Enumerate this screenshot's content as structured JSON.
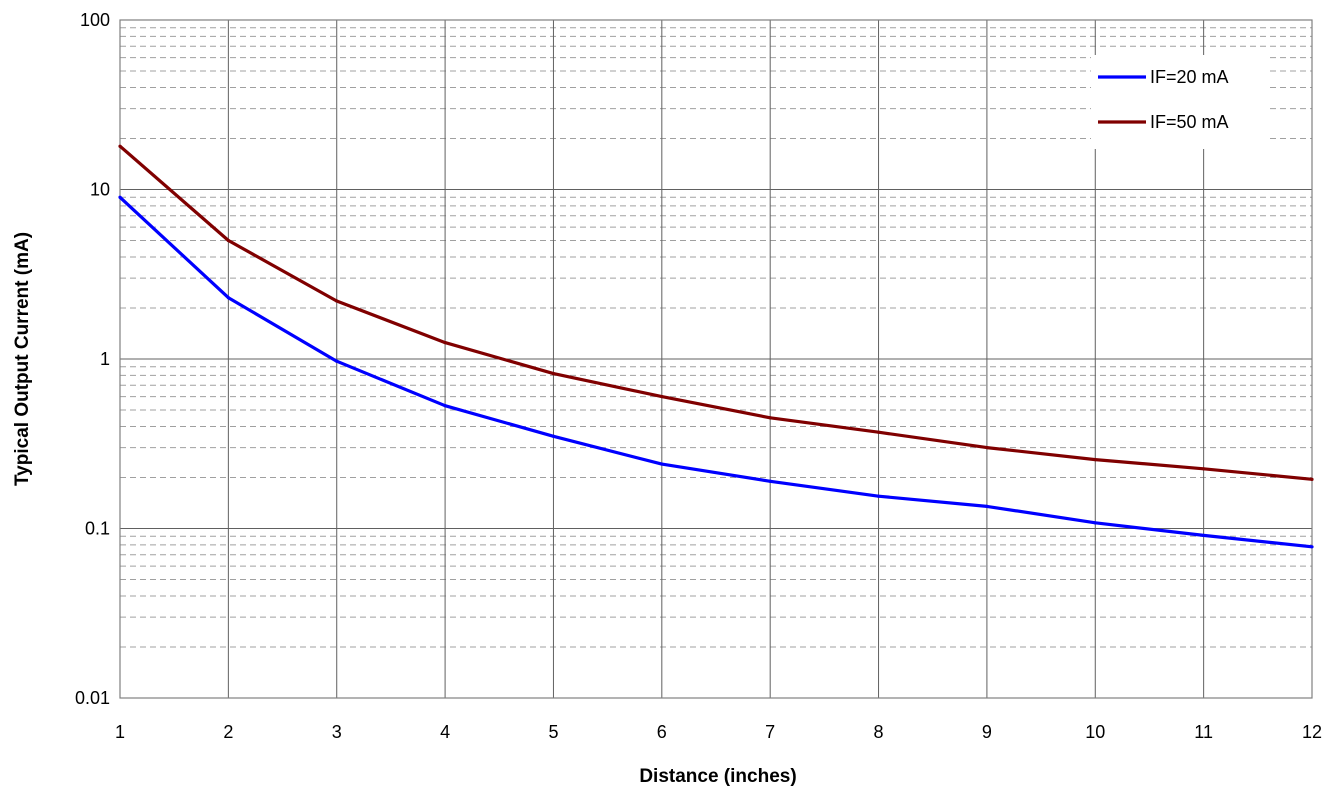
{
  "chart_data": {
    "type": "line",
    "title": "",
    "xlabel": "Distance (inches)",
    "ylabel": "Typical Output Current (mA)",
    "x": [
      1,
      2,
      3,
      4,
      5,
      6,
      7,
      8,
      9,
      10,
      11,
      12
    ],
    "x_tick_labels": [
      "1",
      "2",
      "3",
      "4",
      "5",
      "6",
      "7",
      "8",
      "9",
      "10",
      "11",
      "12"
    ],
    "xlim": [
      1,
      12
    ],
    "yscale": "log",
    "ylim": [
      0.01,
      100
    ],
    "y_tick_labels": [
      "0.01",
      "0.1",
      "1",
      "10",
      "100"
    ],
    "y_ticks": [
      0.01,
      0.1,
      1,
      10,
      100
    ],
    "grid": true,
    "legend_position": "top-right",
    "series": [
      {
        "name": "IF=20 mA",
        "color": "#0000ff",
        "values": [
          9.0,
          2.3,
          0.97,
          0.53,
          0.35,
          0.24,
          0.19,
          0.155,
          0.135,
          0.108,
          0.091,
          0.078
        ]
      },
      {
        "name": "IF=50 mA",
        "color": "#800000",
        "values": [
          18.0,
          5.0,
          2.2,
          1.25,
          0.82,
          0.6,
          0.45,
          0.37,
          0.3,
          0.255,
          0.225,
          0.195
        ]
      }
    ]
  }
}
